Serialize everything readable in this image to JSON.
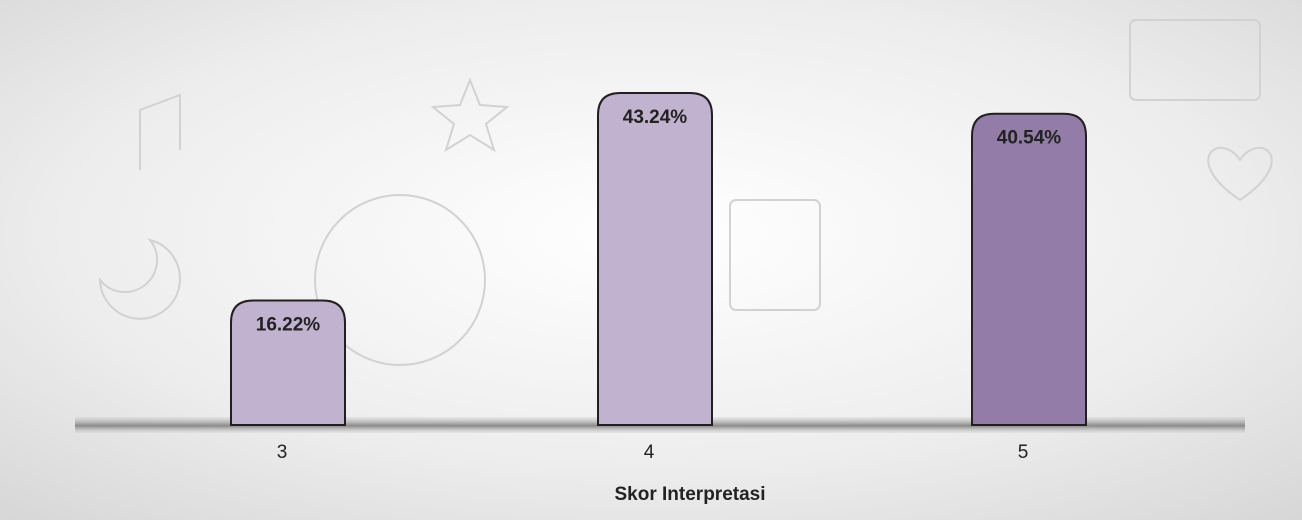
{
  "chart_data": {
    "type": "bar",
    "x_label": "Skor Interpretasi",
    "categories": [
      "3",
      "4",
      "5"
    ],
    "values": [
      16.22,
      43.24,
      40.54
    ],
    "value_labels": [
      "16.22%",
      "43.24%",
      "40.54%"
    ],
    "colors": [
      "#c1b2d0",
      "#c1b2d0",
      "#937ca8"
    ]
  }
}
